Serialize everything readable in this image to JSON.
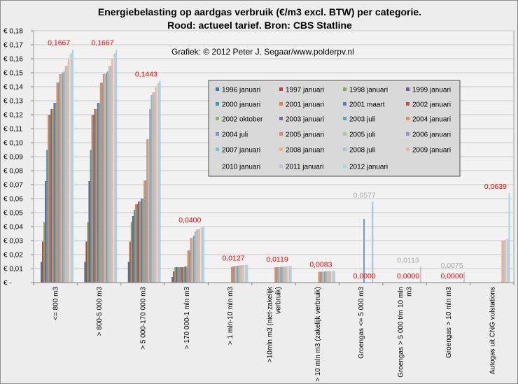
{
  "chart_data": {
    "type": "bar",
    "title": "Energiebelasting op aardgas verbruik (€/m3 excl. BTW) per categorie.",
    "subtitle": "Rood: actueel tarief. Bron: CBS Statline",
    "credit": "Grafiek: © 2012 Peter J. Segaar/www.polderpv.nl",
    "ylim": [
      0,
      0.18
    ],
    "yticks": [
      "€ -",
      "€ 0,01",
      "€ 0,02",
      "€ 0,03",
      "€ 0,04",
      "€ 0,05",
      "€ 0,06",
      "€ 0,07",
      "€ 0,08",
      "€ 0,09",
      "€ 0,10",
      "€ 0,11",
      "€ 0,12",
      "€ 0,13",
      "€ 0,14",
      "€ 0,15",
      "€ 0,16",
      "€ 0,17",
      "€ 0,18"
    ],
    "grid": true,
    "legend_position": "center-right",
    "categories": [
      [
        "<= 800 m3"
      ],
      [
        "> 800-5 000 m3"
      ],
      [
        "> 5 000-170 000 m3"
      ],
      [
        "> 170 000-1 mln m3"
      ],
      [
        "> 1 mln-10 mln m3"
      ],
      [
        ">10mln m3 (niet-zakelijk",
        "verbruik)"
      ],
      [
        "> 10 mln m3 (zakelijk verbruik)"
      ],
      [
        "Groengas <= 5 000 m3"
      ],
      [
        "Groengas > 5 000 t/m 10 mln",
        "m3"
      ],
      [
        "Groengas > 10 mln m3"
      ],
      [
        "Autogas uit CNG vulstations"
      ]
    ],
    "series": [
      {
        "name": "1996 januari",
        "color": "#4572a7",
        "values": [
          0.0148,
          0.0148,
          0.0148,
          0.004,
          0,
          0,
          0,
          0,
          0,
          0,
          0
        ]
      },
      {
        "name": "1997 januari",
        "color": "#aa4643",
        "values": [
          0.0293,
          0.0293,
          0.0293,
          0.008,
          0,
          0,
          0,
          0,
          0,
          0,
          0
        ]
      },
      {
        "name": "1998 januari",
        "color": "#89a54e",
        "values": [
          0.0433,
          0.0433,
          0.0433,
          0.011,
          0,
          0,
          0,
          0,
          0,
          0,
          0
        ]
      },
      {
        "name": "1999 januari",
        "color": "#71588f",
        "values": [
          0.0725,
          0.0725,
          0.0475,
          0.011,
          0,
          0,
          0,
          0,
          0,
          0,
          0
        ]
      },
      {
        "name": "2000 januari",
        "color": "#4198af",
        "values": [
          0.0948,
          0.0948,
          0.052,
          0.011,
          0,
          0,
          0,
          0,
          0,
          0,
          0
        ]
      },
      {
        "name": "2001 januari",
        "color": "#db843d",
        "values": [
          0.12,
          0.12,
          0.056,
          0.011,
          0,
          0,
          0,
          0,
          0,
          0,
          0
        ]
      },
      {
        "name": "2001 maart",
        "color": "#5b82b8",
        "values": [
          0.12,
          0.12,
          0.056,
          0.011,
          0,
          0,
          0,
          0,
          0,
          0,
          0
        ]
      },
      {
        "name": "2002 januari",
        "color": "#b8504c",
        "values": [
          0.124,
          0.124,
          0.058,
          0.011,
          0,
          0,
          0,
          0,
          0,
          0,
          0
        ]
      },
      {
        "name": "2002 oktober",
        "color": "#93b15a",
        "values": [
          0.124,
          0.124,
          0.058,
          0.011,
          0,
          0,
          0,
          0,
          0,
          0,
          0
        ]
      },
      {
        "name": "2003 januari",
        "color": "#7e67a0",
        "values": [
          0.1285,
          0.1285,
          0.06,
          0.0115,
          0,
          0,
          0,
          0,
          0,
          0,
          0
        ]
      },
      {
        "name": "2003 juli",
        "color": "#4ba9c3",
        "values": [
          0.1285,
          0.1285,
          0.06,
          0.0115,
          0,
          0,
          0,
          0,
          0,
          0,
          0
        ]
      },
      {
        "name": "2004 januari",
        "color": "#f08c3a",
        "values": [
          0.143,
          0.143,
          0.073,
          0.023,
          0.011,
          0.011,
          0.0078,
          0,
          0,
          0,
          0
        ]
      },
      {
        "name": "2004 juli",
        "color": "#739ace",
        "values": [
          0.143,
          0.143,
          0.073,
          0.023,
          0.0115,
          0.011,
          0.0078,
          0.0455,
          0,
          0,
          0
        ]
      },
      {
        "name": "2005 januari",
        "color": "#d68a87",
        "values": [
          0.149,
          0.149,
          0.1025,
          0.032,
          0.0118,
          0.011,
          0.0078,
          0,
          0,
          0,
          0
        ]
      },
      {
        "name": "2005 juli",
        "color": "#b0cc86",
        "values": [
          0.149,
          0.149,
          0.1025,
          0.032,
          0.0118,
          0.011,
          0.0078,
          0,
          0,
          0,
          0
        ]
      },
      {
        "name": "2006 januari",
        "color": "#a090be",
        "values": [
          0.15,
          0.15,
          0.124,
          0.0335,
          0.012,
          0.0112,
          0.008,
          0,
          0,
          0,
          0
        ]
      },
      {
        "name": "2007 januari",
        "color": "#74c2d6",
        "values": [
          0.151,
          0.151,
          0.134,
          0.0365,
          0.0121,
          0.0113,
          0.0081,
          0,
          0,
          0,
          0
        ]
      },
      {
        "name": "2008 januari",
        "color": "#f5b07e",
        "values": [
          0.155,
          0.155,
          0.136,
          0.038,
          0.0123,
          0.0115,
          0.0081,
          0,
          0,
          0,
          0.03
        ]
      },
      {
        "name": "2008 juli",
        "color": "#a9c0e0",
        "values": [
          0.155,
          0.155,
          0.136,
          0.038,
          0.0123,
          0.0115,
          0.0081,
          0.0577,
          0,
          0,
          0.03
        ]
      },
      {
        "name": "2009 januari",
        "color": "#e7b1ae",
        "values": [
          0.16,
          0.16,
          0.14,
          0.0385,
          0.0125,
          0.0116,
          0.0082,
          0,
          0,
          0,
          0.0305
        ]
      },
      {
        "name": "2010 januari",
        "color": "#d7e6be",
        "values": [
          0.163,
          0.163,
          0.142,
          0.039,
          0.0126,
          0.0117,
          0.0082,
          0,
          0,
          0,
          0.031
        ]
      },
      {
        "name": "2011 januari",
        "color": "#c5bfd8",
        "values": [
          0.164,
          0.164,
          0.143,
          0.0395,
          0.0126,
          0.0118,
          0.0083,
          0,
          0.0113,
          0.0075,
          0.0312
        ]
      },
      {
        "name": "2012 januari",
        "color": "#a8d6e8",
        "values": [
          0.1667,
          0.1667,
          0.1443,
          0.04,
          0.0127,
          0.0119,
          0.0083,
          0,
          0,
          0,
          0.0639
        ]
      }
    ],
    "annotations": [
      {
        "category": 0,
        "text": "0,1667",
        "value": 0.1667,
        "color": "#ff0000"
      },
      {
        "category": 1,
        "text": "0,1667",
        "value": 0.1667,
        "color": "#ff0000"
      },
      {
        "category": 2,
        "text": "0,1443",
        "value": 0.1443,
        "color": "#ff0000"
      },
      {
        "category": 3,
        "text": "0,0400",
        "value": 0.04,
        "color": "#ff0000"
      },
      {
        "category": 4,
        "text": "0,0127",
        "value": 0.0127,
        "color": "#ff0000"
      },
      {
        "category": 5,
        "text": "0,0119",
        "value": 0.0119,
        "color": "#ff0000"
      },
      {
        "category": 6,
        "text": "0,0083",
        "value": 0.0083,
        "color": "#ff0000"
      },
      {
        "category": 7,
        "text": "0,0577",
        "value": 0.0577,
        "color": "#a6a6a6"
      },
      {
        "category": 7,
        "text": "0,0000",
        "value": 0,
        "color": "#ff0000"
      },
      {
        "category": 8,
        "text": "0,0113",
        "value": 0.0113,
        "color": "#a6a6a6"
      },
      {
        "category": 8,
        "text": "0,0000",
        "value": 0,
        "color": "#ff0000"
      },
      {
        "category": 9,
        "text": "0,0075",
        "value": 0.0075,
        "color": "#a6a6a6"
      },
      {
        "category": 9,
        "text": "0,0000",
        "value": 0,
        "color": "#ff0000"
      },
      {
        "category": 10,
        "text": "0,0639",
        "value": 0.0639,
        "color": "#ff0000"
      }
    ]
  }
}
